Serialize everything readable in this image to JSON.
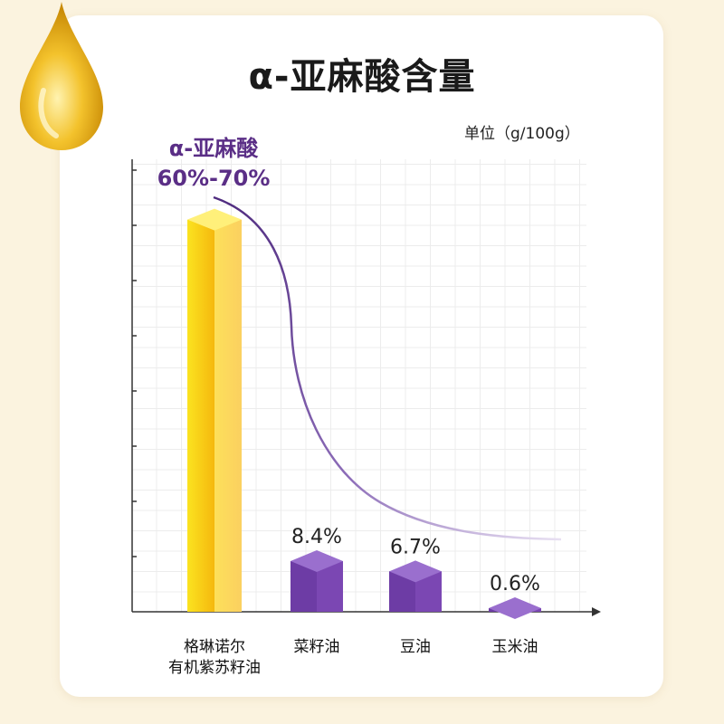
{
  "title": "α-亚麻酸含量",
  "unit_label": "单位（g/100g）",
  "highlight": {
    "line1": "α-亚麻酸",
    "line2": "60%-70%"
  },
  "colors": {
    "highlight_bar": "#f7c21a",
    "other_bars": "#6a3aa0",
    "curve": "#5e3590",
    "background": "#fbf3df"
  },
  "chart_data": {
    "type": "bar",
    "categories": [
      [
        "格琳诺尔",
        "有机紫苏籽油"
      ],
      [
        "菜籽油"
      ],
      [
        "豆油"
      ],
      [
        "玉米油"
      ]
    ],
    "values": [
      65,
      8.4,
      6.7,
      0.6
    ],
    "value_labels": [
      "",
      "8.4%",
      "6.7%",
      "0.6%"
    ],
    "ylim": [
      0,
      75
    ],
    "grid": true,
    "legend": "none"
  }
}
